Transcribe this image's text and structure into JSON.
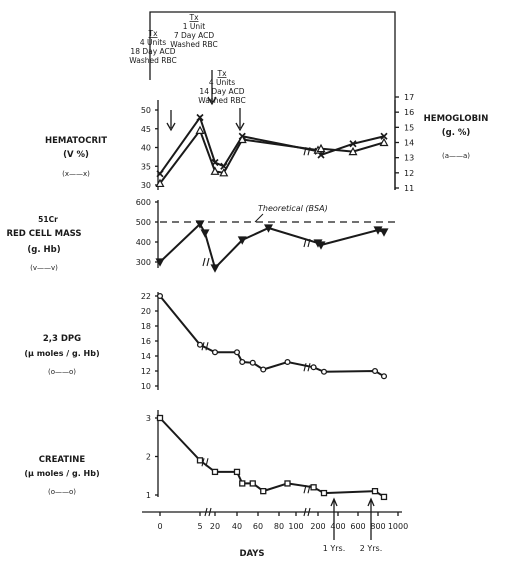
{
  "chart_data": [
    {
      "type": "line",
      "panel": "hematocrit-hemoglobin",
      "ylabel_left": [
        "HEMATOCRIT",
        "(V %)"
      ],
      "ylabel_right": [
        "HEMOGLOBIN",
        "(g. %)"
      ],
      "legend_left": "(x——x)",
      "legend_right": "(a——a)",
      "yticks_left": [
        "30",
        "35",
        "40",
        "45",
        "50"
      ],
      "yticks_right": [
        "11",
        "12",
        "13",
        "14",
        "15",
        "16",
        "17"
      ],
      "ylim_left": [
        29,
        56
      ],
      "ylim_right": [
        11,
        17.6
      ],
      "series": [
        {
          "axis": "left",
          "x": [
            0,
            5,
            20,
            28,
            45,
            200,
            230,
            550,
            860
          ],
          "y": [
            33,
            48,
            36,
            35,
            43,
            39,
            38,
            41,
            43
          ]
        },
        {
          "axis": "right",
          "x": [
            0,
            5,
            20,
            28,
            45,
            200,
            230,
            550,
            860
          ],
          "y": [
            11.3,
            14.8,
            12.1,
            12.0,
            14.2,
            13.5,
            13.6,
            13.4,
            14.0
          ]
        }
      ],
      "annotations": [
        {
          "lines": [
            "Tx",
            "4 Units",
            "18 Day ACD",
            "Washed RBC"
          ],
          "at_day": 5
        },
        {
          "lines": [
            "Tx",
            "1 Unit",
            "7 Day ACD",
            "Washed RBC"
          ],
          "at_day": 10
        },
        {
          "lines": [
            "Tx",
            "4 Units",
            "14 Day ACD",
            "Washed RBC"
          ],
          "at_day": 22
        }
      ]
    },
    {
      "type": "line",
      "panel": "red-cell-mass",
      "ylabel": [
        "51Cr",
        "RED CELL MASS",
        "(g. Hb)"
      ],
      "legend": "(v——v)",
      "yticks": [
        "300",
        "400",
        "500",
        "600"
      ],
      "ylim": [
        290,
        600
      ],
      "reference_line": {
        "label": "Theoretical (BSA)",
        "value": 500
      },
      "x": [
        0,
        5,
        10,
        20,
        45,
        70,
        200,
        230,
        800,
        860
      ],
      "y": [
        300,
        490,
        445,
        270,
        410,
        470,
        395,
        385,
        460,
        450
      ]
    },
    {
      "type": "line",
      "panel": "2-3-dpg",
      "ylabel": [
        "2,3 DPG",
        "(µ moles / g. Hb)"
      ],
      "legend": "(o——o)",
      "yticks": [
        "10",
        "12",
        "14",
        "16",
        "18",
        "20",
        "22"
      ],
      "ylim": [
        10,
        22.5
      ],
      "x": [
        0,
        5,
        20,
        40,
        45,
        55,
        65,
        90,
        180,
        260,
        770,
        860
      ],
      "y": [
        22,
        15.5,
        14.5,
        14.5,
        13.2,
        13.1,
        12.2,
        13.2,
        12.5,
        11.9,
        12,
        11.3
      ]
    },
    {
      "type": "line",
      "panel": "creatine",
      "ylabel": [
        "CREATINE",
        "(µ moles / g. Hb)"
      ],
      "legend": "(o——o)",
      "yticks": [
        "1",
        "2",
        "3"
      ],
      "ylim": [
        0.8,
        3.1
      ],
      "x": [
        0,
        5,
        20,
        40,
        45,
        55,
        65,
        90,
        180,
        260,
        770,
        860
      ],
      "y": [
        3,
        1.9,
        1.6,
        1.6,
        1.3,
        1.3,
        1.1,
        1.3,
        1.2,
        1.05,
        1.1,
        0.95
      ]
    }
  ],
  "x_axis": {
    "label": "DAYS",
    "ticks": [
      "0",
      "5",
      "20",
      "40",
      "60",
      "80",
      "100",
      "200",
      "400",
      "600",
      "800",
      "1000"
    ],
    "markers": [
      "1 Yrs.",
      "2 Yrs."
    ]
  }
}
